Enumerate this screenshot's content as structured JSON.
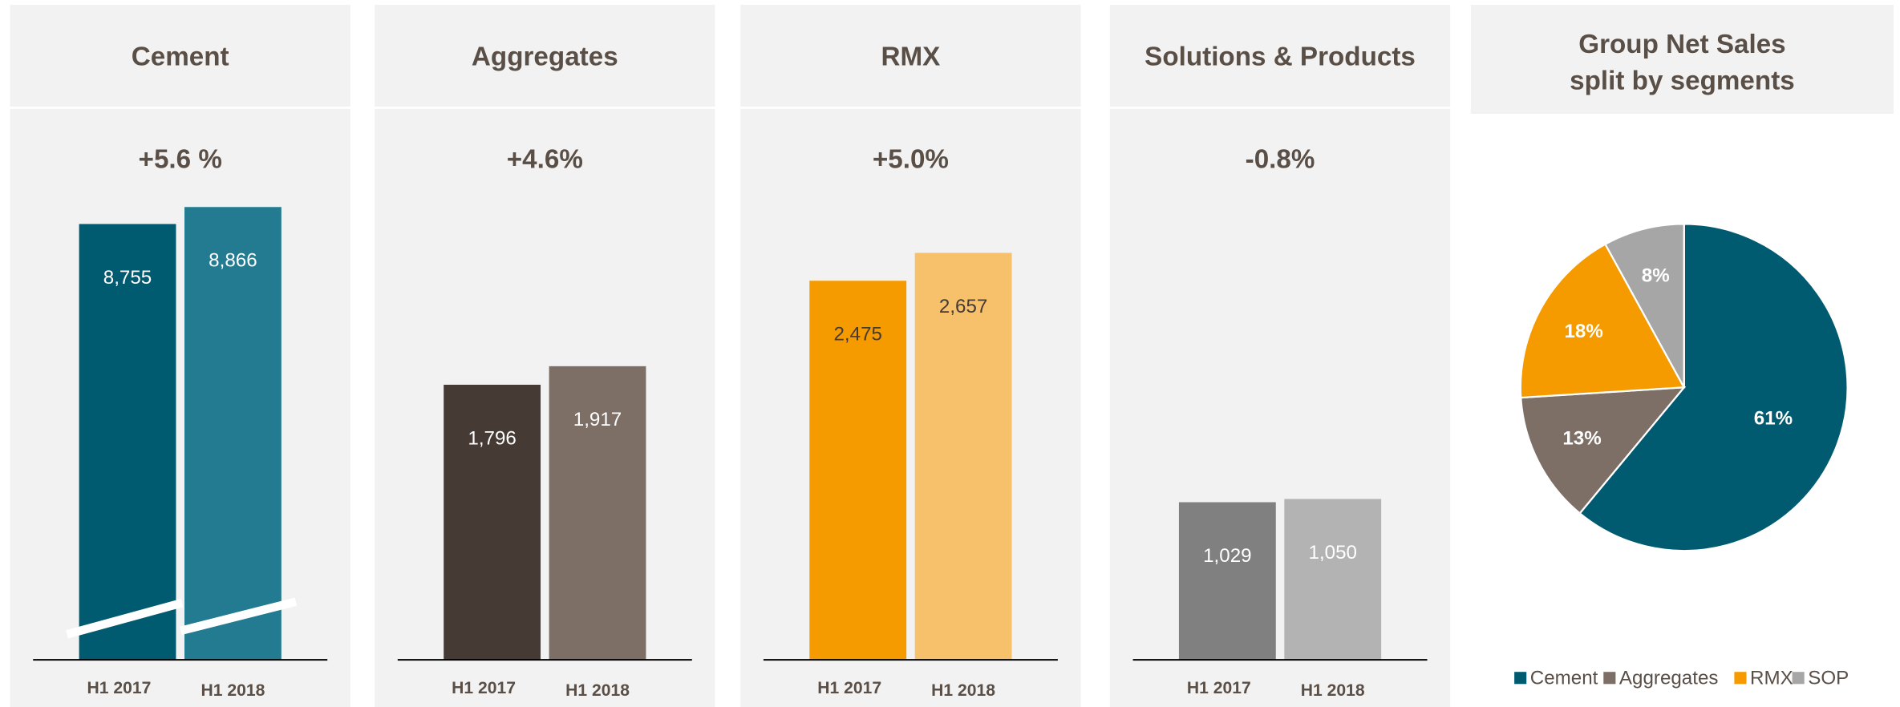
{
  "chart_data": [
    {
      "type": "bar",
      "title": "Cement",
      "change": "+5.6 %",
      "categories": [
        "H1 2017",
        "H1 2018"
      ],
      "values": [
        8755,
        8866
      ],
      "value_labels": [
        "8,755",
        "8,866"
      ],
      "colors": [
        "#005a70",
        "#227b91"
      ],
      "label_color": "#ffffff",
      "axis_break": true
    },
    {
      "type": "bar",
      "title": "Aggregates",
      "change": "+4.6%",
      "categories": [
        "H1 2017",
        "H1 2018"
      ],
      "values": [
        1796,
        1917
      ],
      "value_labels": [
        "1,796",
        "1,917"
      ],
      "colors": [
        "#463a35",
        "#7d6e66"
      ],
      "label_color": "#ffffff"
    },
    {
      "type": "bar",
      "title": "RMX",
      "change": "+5.0%",
      "categories": [
        "H1 2017",
        "H1 2018"
      ],
      "values": [
        2475,
        2657
      ],
      "value_labels": [
        "2,475",
        "2,657"
      ],
      "colors": [
        "#f59b00",
        "#f7c06b"
      ],
      "label_color": "#463a35"
    },
    {
      "type": "bar",
      "title": "Solutions & Products",
      "change": "-0.8%",
      "categories": [
        "H1 2017",
        "H1 2018"
      ],
      "values": [
        1029,
        1050
      ],
      "value_labels": [
        "1,029",
        "1,050"
      ],
      "colors": [
        "#808080",
        "#b3b3b3"
      ],
      "label_color": "#ffffff"
    },
    {
      "type": "pie",
      "title": [
        "Group Net Sales",
        "split by segments"
      ],
      "categories": [
        "Cement",
        "Aggregates",
        "RMX",
        "SOP"
      ],
      "values": [
        61,
        13,
        18,
        8
      ],
      "value_labels": [
        "61%",
        "13%",
        "18%",
        "8%"
      ],
      "colors": [
        "#005a70",
        "#7d6e66",
        "#f59b00",
        "#a6a6a6"
      ],
      "legend": "bottom"
    }
  ]
}
